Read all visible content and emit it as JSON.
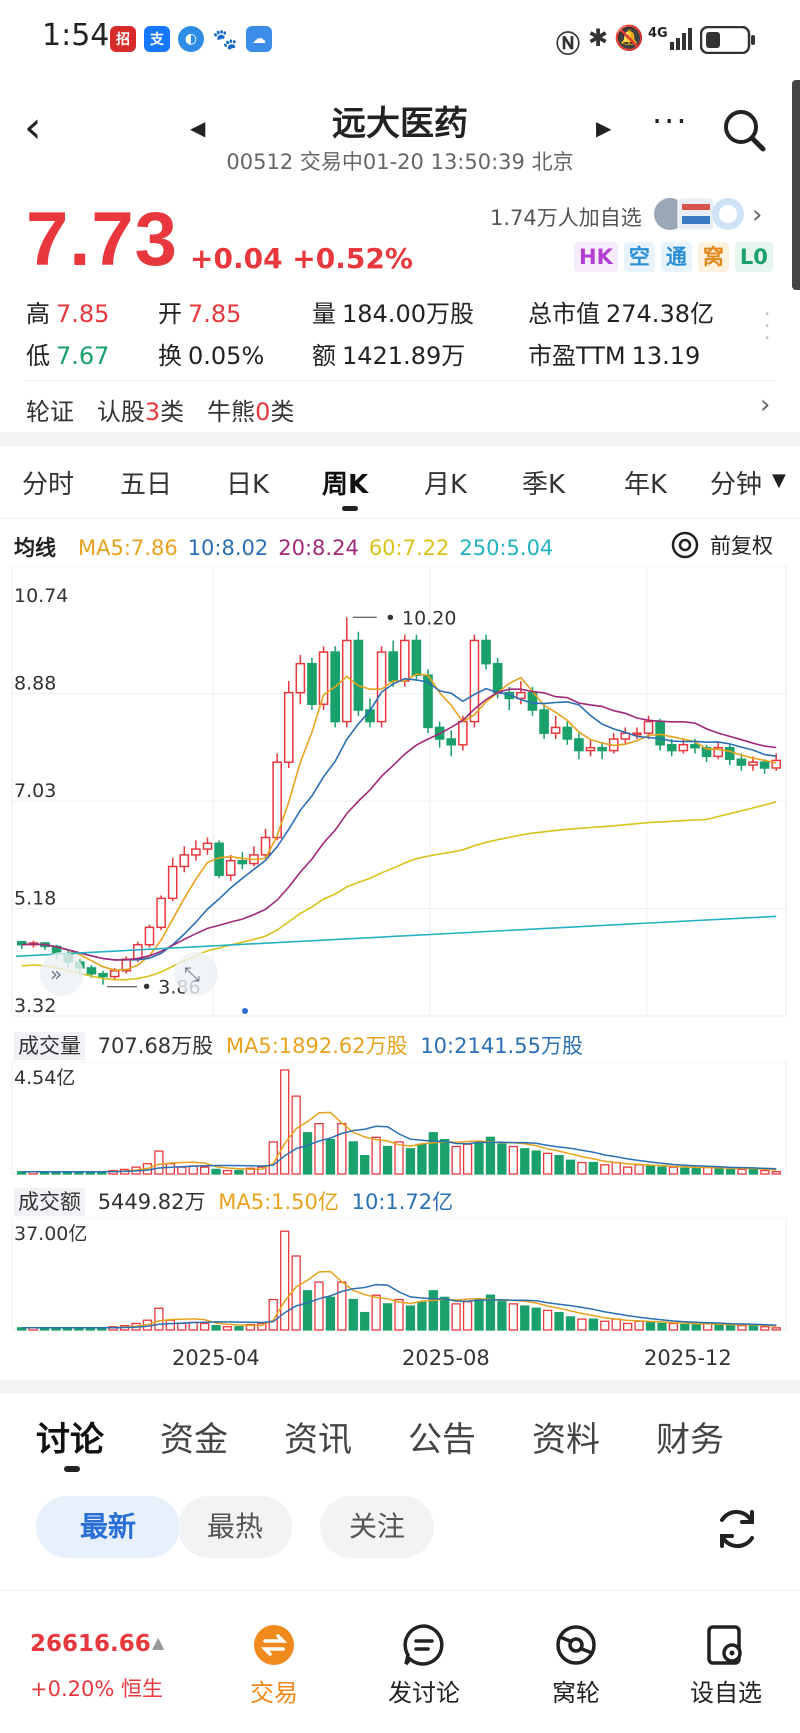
{
  "status_bar": {
    "time": "1:54",
    "network": "4G",
    "app_icons": [
      "cmb-icon",
      "alipay-icon",
      "browser-icon",
      "baidu-icon",
      "cloud-icon"
    ]
  },
  "header": {
    "title": "远大医药",
    "subtitle": "00512 交易中01-20 13:50:39 北京"
  },
  "quote": {
    "price": "7.73",
    "change": "+0.04 +0.52%",
    "followers": "1.74万人加自选",
    "badges": [
      {
        "label": "HK",
        "color": "#b23fcf",
        "bg": "#f6ecfb"
      },
      {
        "label": "空",
        "color": "#2a8fd6",
        "bg": "#e9f3fb"
      },
      {
        "label": "通",
        "color": "#2a8fd6",
        "bg": "#e9f3fb"
      },
      {
        "label": "窝",
        "color": "#e08a1e",
        "bg": "#fdf1e0"
      },
      {
        "label": "L0",
        "color": "#1aa06a",
        "bg": "#e6f6ee"
      }
    ],
    "high_label": "高",
    "high": "7.85",
    "open_label": "开",
    "open": "7.85",
    "volume_label": "量",
    "volume": "184.00万股",
    "mktcap_label": "总市值",
    "mktcap": "274.38亿",
    "low_label": "低",
    "low": "7.67",
    "turnover_label": "换",
    "turnover": "0.05%",
    "amount_label": "额",
    "amount": "1421.89万",
    "pe_label": "市盈TTM",
    "pe": "13.19"
  },
  "warrants": {
    "label": "轮证",
    "call_label": "认股",
    "call_count": "3",
    "call_suffix": "类",
    "bull_label": "牛熊",
    "bull_count": "0",
    "bull_suffix": "类"
  },
  "period_tabs": [
    "分时",
    "五日",
    "日K",
    "周K",
    "月K",
    "季K",
    "年K",
    "分钟"
  ],
  "active_period": "周K",
  "ma_row": {
    "label": "均线",
    "items": [
      {
        "text": "MA5:7.86",
        "color": "#e8a21e"
      },
      {
        "text": "10:8.02",
        "color": "#2b6fb3"
      },
      {
        "text": "20:8.24",
        "color": "#a0297a"
      },
      {
        "text": "60:7.22",
        "color": "#d9c21a"
      },
      {
        "text": "250:5.04",
        "color": "#24b3c2"
      }
    ],
    "adjust": "前复权"
  },
  "price_axis": [
    "10.74",
    "8.88",
    "7.03",
    "5.18",
    "3.32"
  ],
  "annotations": {
    "high": "10.20",
    "low": "3.86"
  },
  "volume_panel": {
    "label": "成交量",
    "value": "707.68万股",
    "ma5": "MA5:1892.62万股",
    "ma10": "10:2141.55万股",
    "axis_max": "4.54亿"
  },
  "amount_panel": {
    "label": "成交额",
    "value": "5449.82万",
    "ma5": "MA5:1.50亿",
    "ma10": "10:1.72亿",
    "axis_max": "37.00亿"
  },
  "date_axis": [
    "2025-04",
    "2025-08",
    "2025-12"
  ],
  "chart_data": {
    "type": "candlestick",
    "period": "weekly",
    "ylim": [
      3.32,
      10.74
    ],
    "candles": [
      {
        "o": 4.6,
        "c": 4.55,
        "h": 4.62,
        "l": 4.48
      },
      {
        "o": 4.55,
        "c": 4.58,
        "h": 4.62,
        "l": 4.5
      },
      {
        "o": 4.58,
        "c": 4.52,
        "h": 4.6,
        "l": 4.46
      },
      {
        "o": 4.52,
        "c": 4.4,
        "h": 4.55,
        "l": 4.3
      },
      {
        "o": 4.4,
        "c": 4.25,
        "h": 4.45,
        "l": 4.15
      },
      {
        "o": 4.25,
        "c": 4.15,
        "h": 4.3,
        "l": 4.05
      },
      {
        "o": 4.15,
        "c": 4.05,
        "h": 4.2,
        "l": 3.98
      },
      {
        "o": 4.05,
        "c": 4.0,
        "h": 4.1,
        "l": 3.86
      },
      {
        "o": 4.0,
        "c": 4.1,
        "h": 4.15,
        "l": 3.95
      },
      {
        "o": 4.1,
        "c": 4.3,
        "h": 4.35,
        "l": 4.05
      },
      {
        "o": 4.3,
        "c": 4.55,
        "h": 4.6,
        "l": 4.25
      },
      {
        "o": 4.55,
        "c": 4.85,
        "h": 4.9,
        "l": 4.5
      },
      {
        "o": 4.85,
        "c": 5.35,
        "h": 5.4,
        "l": 4.8
      },
      {
        "o": 5.35,
        "c": 5.9,
        "h": 6.05,
        "l": 5.3
      },
      {
        "o": 5.9,
        "c": 6.1,
        "h": 6.25,
        "l": 5.8
      },
      {
        "o": 6.1,
        "c": 6.2,
        "h": 6.35,
        "l": 6.0
      },
      {
        "o": 6.2,
        "c": 6.3,
        "h": 6.4,
        "l": 6.1
      },
      {
        "o": 6.3,
        "c": 5.75,
        "h": 6.35,
        "l": 5.7
      },
      {
        "o": 5.75,
        "c": 6.0,
        "h": 6.1,
        "l": 5.65
      },
      {
        "o": 6.0,
        "c": 5.95,
        "h": 6.15,
        "l": 5.85
      },
      {
        "o": 5.95,
        "c": 6.1,
        "h": 6.25,
        "l": 5.9
      },
      {
        "o": 6.1,
        "c": 6.4,
        "h": 6.55,
        "l": 6.05
      },
      {
        "o": 6.4,
        "c": 7.7,
        "h": 7.85,
        "l": 6.35
      },
      {
        "o": 7.7,
        "c": 8.9,
        "h": 9.1,
        "l": 7.6
      },
      {
        "o": 8.9,
        "c": 9.4,
        "h": 9.55,
        "l": 8.7
      },
      {
        "o": 9.4,
        "c": 8.7,
        "h": 9.5,
        "l": 8.6
      },
      {
        "o": 8.7,
        "c": 9.6,
        "h": 9.7,
        "l": 8.6
      },
      {
        "o": 9.6,
        "c": 8.4,
        "h": 9.7,
        "l": 8.3
      },
      {
        "o": 8.4,
        "c": 9.8,
        "h": 10.2,
        "l": 8.3
      },
      {
        "o": 9.8,
        "c": 8.6,
        "h": 9.95,
        "l": 8.5
      },
      {
        "o": 8.6,
        "c": 8.4,
        "h": 8.8,
        "l": 8.3
      },
      {
        "o": 8.4,
        "c": 9.6,
        "h": 9.7,
        "l": 8.3
      },
      {
        "o": 9.6,
        "c": 9.1,
        "h": 9.8,
        "l": 9.0
      },
      {
        "o": 9.1,
        "c": 9.8,
        "h": 9.9,
        "l": 9.0
      },
      {
        "o": 9.8,
        "c": 9.2,
        "h": 9.9,
        "l": 9.1
      },
      {
        "o": 9.2,
        "c": 8.3,
        "h": 9.3,
        "l": 8.2
      },
      {
        "o": 8.3,
        "c": 8.1,
        "h": 8.4,
        "l": 7.95
      },
      {
        "o": 8.1,
        "c": 8.0,
        "h": 8.25,
        "l": 7.8
      },
      {
        "o": 8.0,
        "c": 8.4,
        "h": 8.5,
        "l": 7.9
      },
      {
        "o": 8.4,
        "c": 9.8,
        "h": 9.9,
        "l": 8.3
      },
      {
        "o": 9.8,
        "c": 9.4,
        "h": 9.9,
        "l": 9.3
      },
      {
        "o": 9.4,
        "c": 8.9,
        "h": 9.5,
        "l": 8.8
      },
      {
        "o": 8.9,
        "c": 8.8,
        "h": 9.0,
        "l": 8.6
      },
      {
        "o": 8.8,
        "c": 8.9,
        "h": 9.1,
        "l": 8.7
      },
      {
        "o": 8.9,
        "c": 8.6,
        "h": 9.0,
        "l": 8.5
      },
      {
        "o": 8.6,
        "c": 8.2,
        "h": 8.7,
        "l": 8.1
      },
      {
        "o": 8.2,
        "c": 8.3,
        "h": 8.5,
        "l": 8.1
      },
      {
        "o": 8.3,
        "c": 8.1,
        "h": 8.4,
        "l": 8.0
      },
      {
        "o": 8.1,
        "c": 7.9,
        "h": 8.2,
        "l": 7.75
      },
      {
        "o": 7.9,
        "c": 7.95,
        "h": 8.1,
        "l": 7.8
      },
      {
        "o": 7.95,
        "c": 7.9,
        "h": 8.05,
        "l": 7.75
      },
      {
        "o": 7.9,
        "c": 8.1,
        "h": 8.2,
        "l": 7.85
      },
      {
        "o": 8.1,
        "c": 8.2,
        "h": 8.3,
        "l": 8.0
      },
      {
        "o": 8.2,
        "c": 8.2,
        "h": 8.3,
        "l": 8.1
      },
      {
        "o": 8.2,
        "c": 8.4,
        "h": 8.5,
        "l": 8.1
      },
      {
        "o": 8.4,
        "c": 8.0,
        "h": 8.45,
        "l": 7.9
      },
      {
        "o": 8.0,
        "c": 7.9,
        "h": 8.1,
        "l": 7.8
      },
      {
        "o": 7.9,
        "c": 8.0,
        "h": 8.1,
        "l": 7.85
      },
      {
        "o": 8.0,
        "c": 7.95,
        "h": 8.1,
        "l": 7.85
      },
      {
        "o": 7.95,
        "c": 7.8,
        "h": 8.0,
        "l": 7.7
      },
      {
        "o": 7.8,
        "c": 7.95,
        "h": 8.05,
        "l": 7.75
      },
      {
        "o": 7.95,
        "c": 7.75,
        "h": 8.0,
        "l": 7.65
      },
      {
        "o": 7.75,
        "c": 7.65,
        "h": 7.85,
        "l": 7.55
      },
      {
        "o": 7.65,
        "c": 7.7,
        "h": 7.8,
        "l": 7.55
      },
      {
        "o": 7.7,
        "c": 7.6,
        "h": 7.75,
        "l": 7.5
      },
      {
        "o": 7.6,
        "c": 7.73,
        "h": 7.85,
        "l": 7.55
      }
    ],
    "volume_ylim": [
      0,
      4.54
    ],
    "volume_unit": "亿",
    "volume": [
      0.1,
      0.1,
      0.1,
      0.1,
      0.1,
      0.1,
      0.1,
      0.1,
      0.15,
      0.2,
      0.3,
      0.45,
      1.0,
      0.45,
      0.3,
      0.35,
      0.3,
      0.2,
      0.15,
      0.15,
      0.25,
      0.3,
      1.4,
      4.54,
      3.4,
      1.8,
      2.2,
      1.5,
      2.2,
      1.4,
      0.8,
      1.6,
      1.2,
      1.4,
      1.1,
      1.3,
      1.8,
      1.5,
      1.2,
      1.3,
      1.4,
      1.6,
      1.3,
      1.2,
      1.1,
      1.0,
      0.9,
      0.8,
      0.6,
      0.5,
      0.5,
      0.4,
      0.5,
      0.3,
      0.4,
      0.35,
      0.3,
      0.3,
      0.25,
      0.25,
      0.3,
      0.25,
      0.2,
      0.2,
      0.25,
      0.15,
      0.1
    ]
  },
  "discussion_tabs": [
    "讨论",
    "资金",
    "资讯",
    "公告",
    "资料",
    "财务"
  ],
  "filter_pills": [
    "最新",
    "最热",
    "关注"
  ],
  "bottom": {
    "index_value": "26616.66",
    "index_change": "+0.20% 恒生",
    "nav": [
      "交易",
      "发讨论",
      "窝轮",
      "设自选"
    ]
  }
}
